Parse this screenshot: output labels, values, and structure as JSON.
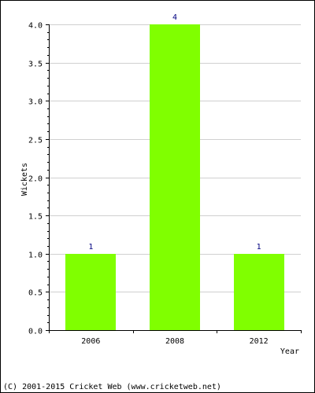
{
  "chart_data": {
    "type": "bar",
    "categories": [
      "2006",
      "2008",
      "2012"
    ],
    "values": [
      1,
      4,
      1
    ],
    "data_labels": [
      "1",
      "4",
      "1"
    ],
    "xlabel": "Year",
    "ylabel": "Wickets",
    "ylim": [
      0,
      4
    ],
    "yticks": [
      0.0,
      0.5,
      1.0,
      1.5,
      2.0,
      2.5,
      3.0,
      3.5,
      4.0
    ],
    "ytick_labels": [
      "0.0",
      "0.5",
      "1.0",
      "1.5",
      "2.0",
      "2.5",
      "3.0",
      "3.5",
      "4.0"
    ],
    "grid": "horizontal",
    "legend": "none",
    "colors": {
      "bar": "#80ff00",
      "data_label": "#000080",
      "axis_text": "#000000",
      "grid": "#d0d0d0",
      "frame": "#000000"
    }
  },
  "footer": {
    "copyright": "(C) 2001-2015 Cricket Web (www.cricketweb.net)"
  }
}
